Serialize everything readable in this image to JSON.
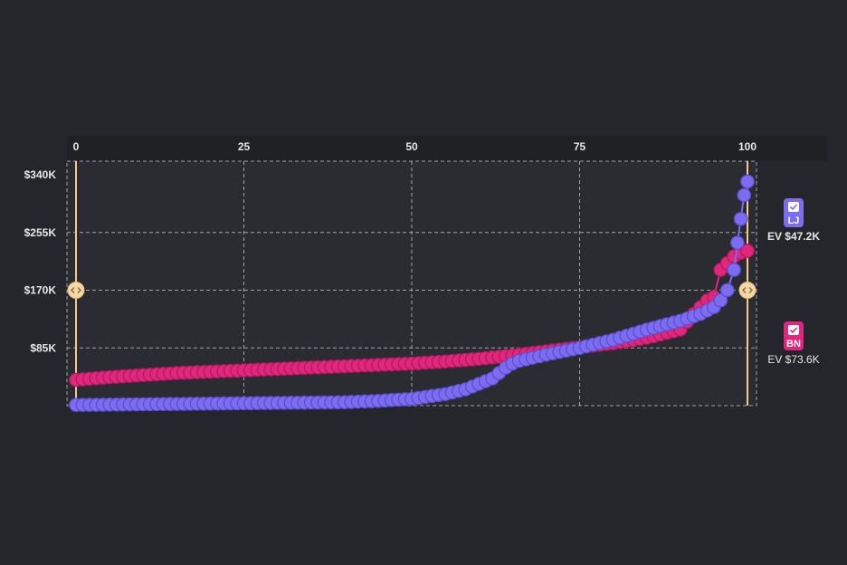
{
  "chart_data": {
    "type": "scatter",
    "x_ticks": [
      "0",
      "25",
      "50",
      "75",
      "100"
    ],
    "y_ticks": [
      "$340K",
      "$255K",
      "$170K",
      "$85K"
    ],
    "xlim": [
      0,
      100
    ],
    "ylim": [
      0,
      340
    ],
    "y_unit": "thousands USD",
    "grid": true,
    "range_handles": [
      0,
      100
    ],
    "series": [
      {
        "name": "BN",
        "ev_label": "EV $73.6K",
        "color": "#e0267d",
        "x": [
          0,
          5,
          10,
          15,
          20,
          25,
          30,
          35,
          40,
          45,
          50,
          55,
          60,
          65,
          70,
          75,
          80,
          85,
          90,
          92,
          94,
          95,
          96,
          97,
          98,
          99,
          100
        ],
        "y": [
          38,
          42,
          45,
          48,
          50,
          52,
          54,
          56,
          58,
          60,
          62,
          65,
          69,
          74,
          80,
          86,
          92,
          100,
          112,
          135,
          155,
          160,
          200,
          210,
          220,
          225,
          228
        ]
      },
      {
        "name": "LJ",
        "ev_label": "EV $47.2K",
        "color": "#7b6cf0",
        "x": [
          0,
          10,
          20,
          30,
          40,
          45,
          50,
          55,
          58,
          60,
          62,
          63,
          64,
          65,
          66,
          70,
          75,
          80,
          85,
          90,
          93,
          95,
          96,
          97,
          98,
          98.5,
          99,
          99.5,
          100
        ],
        "y": [
          1,
          2,
          3,
          4,
          5,
          7,
          10,
          17,
          24,
          32,
          40,
          48,
          56,
          62,
          66,
          75,
          85,
          97,
          112,
          125,
          135,
          145,
          155,
          170,
          200,
          240,
          275,
          310,
          330
        ]
      }
    ]
  },
  "legend": {
    "lj": {
      "badge": "LJ",
      "ev": "EV $47.2K",
      "color": "#7b6cf0",
      "checked": true
    },
    "bn": {
      "badge": "BN",
      "ev": "EV $73.6K",
      "color": "#e0267d",
      "checked": true
    }
  },
  "icons": {
    "handle": "drag-handle-icon",
    "checkbox": "checkmark-icon"
  }
}
